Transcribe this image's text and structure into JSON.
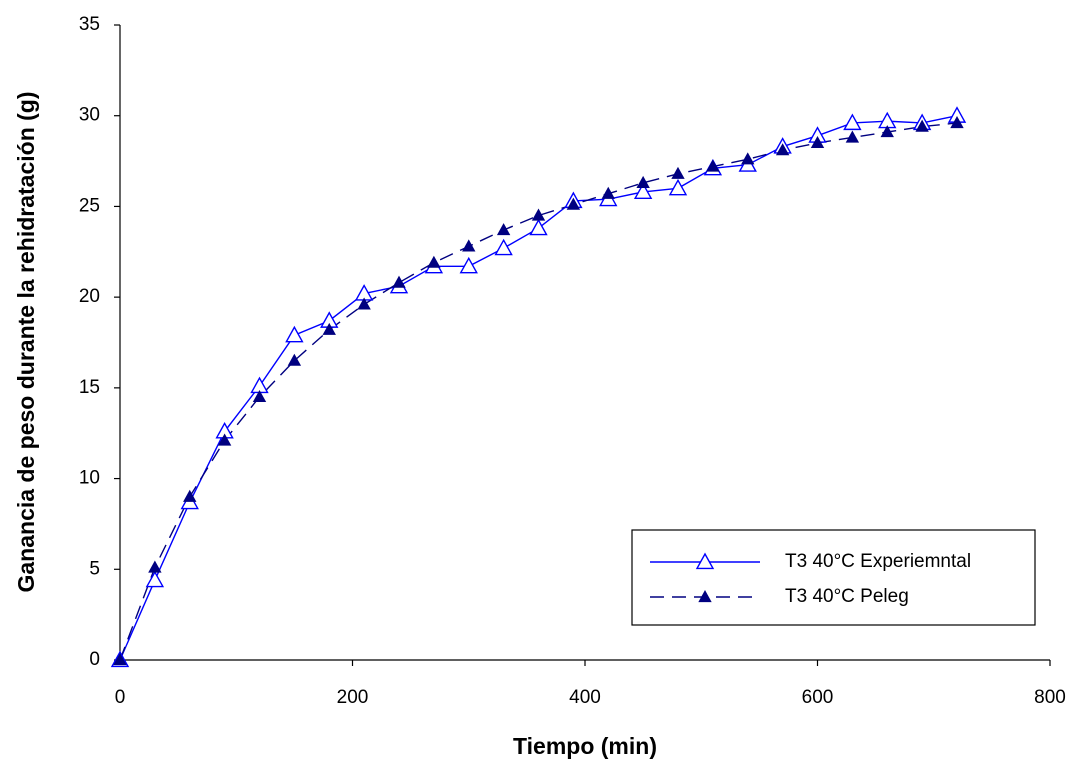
{
  "chart_data": {
    "type": "line",
    "x_label": "Tiempo (min)",
    "y_label": "Ganancia de peso durante la rehidratación (g)",
    "x": [
      0,
      30,
      60,
      90,
      120,
      150,
      180,
      210,
      240,
      270,
      300,
      330,
      360,
      390,
      420,
      450,
      480,
      510,
      540,
      570,
      600,
      630,
      660,
      690,
      720
    ],
    "series": [
      {
        "name": "T3 40°C Experiemntal",
        "color": "#0000ff",
        "linestyle": "solid",
        "marker": "triangle-open",
        "values": [
          0,
          4.4,
          8.7,
          12.6,
          15.1,
          17.9,
          18.7,
          20.2,
          20.6,
          21.7,
          21.7,
          22.7,
          23.8,
          25.3,
          25.4,
          25.8,
          26.0,
          27.1,
          27.3,
          28.3,
          28.9,
          29.6,
          29.7,
          29.6,
          30.0
        ]
      },
      {
        "name": "T3 40°C Peleg",
        "color": "#000080",
        "linestyle": "dashed",
        "marker": "triangle-filled",
        "values": [
          0,
          5.1,
          9.0,
          12.1,
          14.5,
          16.5,
          18.2,
          19.6,
          20.8,
          21.9,
          22.8,
          23.7,
          24.5,
          25.1,
          25.7,
          26.3,
          26.8,
          27.2,
          27.6,
          28.1,
          28.5,
          28.8,
          29.1,
          29.4,
          29.6
        ]
      }
    ],
    "xlim": [
      0,
      800
    ],
    "xticks": [
      0,
      200,
      400,
      600,
      800
    ],
    "ylim": [
      0,
      35
    ],
    "yticks": [
      0,
      5,
      10,
      15,
      20,
      25,
      30,
      35
    ],
    "legend_position": "lower right"
  }
}
